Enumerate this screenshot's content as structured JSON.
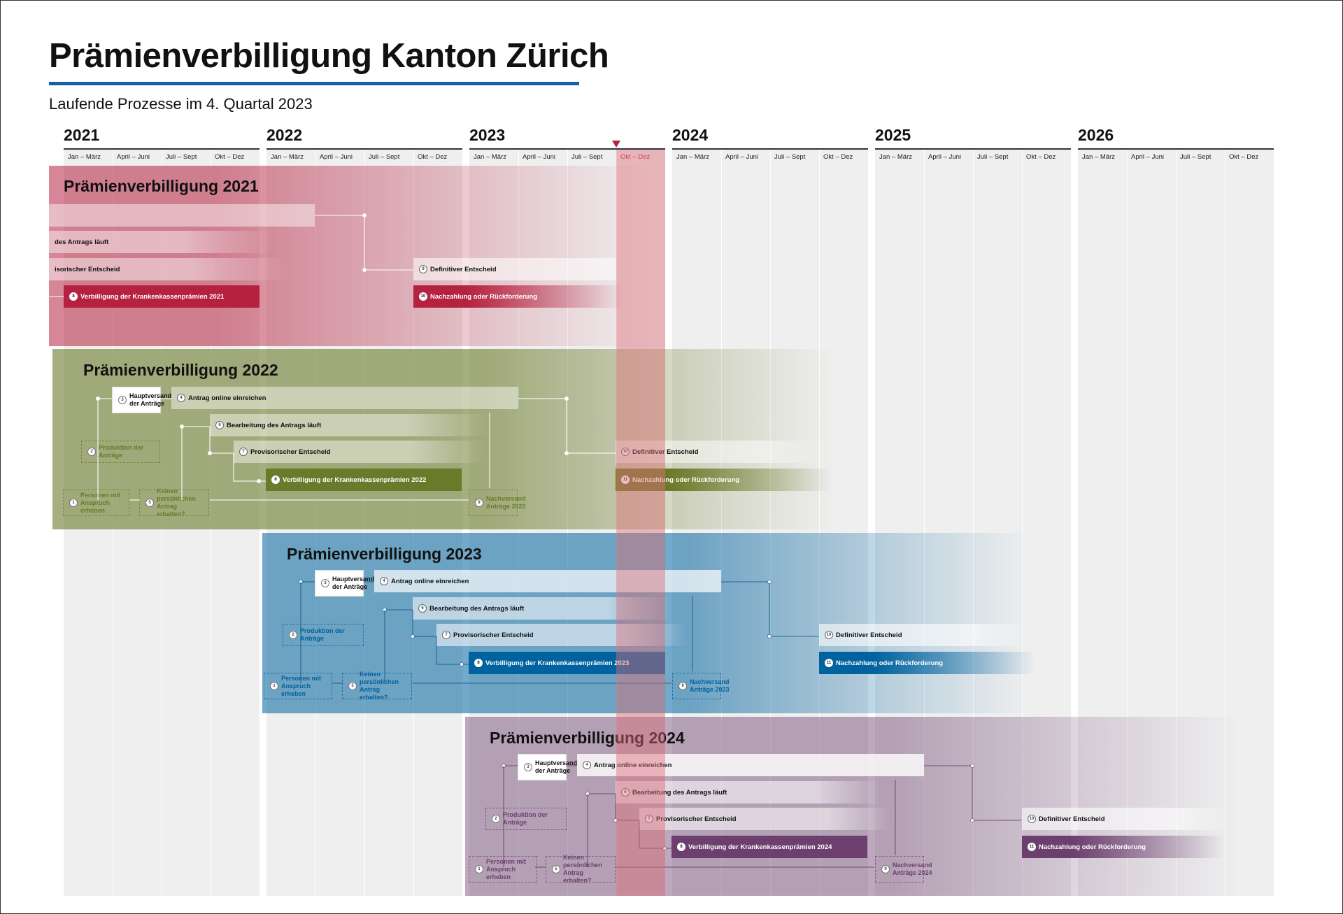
{
  "header": {
    "title": "Prämienverbilligung Kanton Zürich",
    "subtitle": "Laufende Prozesse im 4. Quartal 2023"
  },
  "timeline": {
    "years": [
      "2021",
      "2022",
      "2023",
      "2024",
      "2025",
      "2026"
    ],
    "quarters": [
      "Jan – März",
      "April – Juni",
      "Juli – Sept",
      "Okt – Dez"
    ],
    "current_quarter": {
      "year": "2023",
      "quarter": "Okt – Dez"
    }
  },
  "colors": {
    "y2021": "#b5223f",
    "y2022": "#6b7a2a",
    "y2023": "#00629e",
    "y2024": "#6c3f6e",
    "title_rule": "#1a5fa8",
    "now_marker": "#b5223f"
  },
  "bands": {
    "y2021": {
      "title": "Prämienverbilligung 2021",
      "main_bar": "",
      "processing": "des Antrags läuft",
      "provisional": "isorischer Entscheid",
      "reduction": {
        "num": "8",
        "label": "Verbilligung der Krankenkassenprämien 2021"
      },
      "definitive": {
        "num": "9",
        "label": "Definitiver Entscheid"
      },
      "settlement": {
        "num": "10",
        "label": "Nachzahlung oder Rückforderung"
      }
    },
    "y2022": {
      "title": "Prämienverbilligung 2022",
      "dispatch": {
        "num": "3",
        "label": "Hauptversand der Anträge"
      },
      "online": {
        "num": "4",
        "label": "Antrag online einreichen"
      },
      "processing": {
        "num": "6",
        "label": "Bearbeitung des Antrags läuft"
      },
      "production": {
        "num": "2",
        "label": "Produktion der Anträge"
      },
      "provisional": {
        "num": "7",
        "label": "Provisorischer Entscheid"
      },
      "reduction": {
        "num": "8",
        "label": "Verbilligung der Krankenkassenprämien 2022"
      },
      "persons": {
        "num": "1",
        "label": "Personen mit Anspruch erheben"
      },
      "no_form": {
        "num": "5",
        "label": "Keinen persönlichen Antrag erhalten?"
      },
      "followup": {
        "num": "9",
        "label": "Nachversand Anträge 2022"
      },
      "definitive": {
        "num": "10",
        "label": "Definitiver Entscheid"
      },
      "settlement": {
        "num": "11",
        "label": "Nachzahlung oder Rückforderung"
      }
    },
    "y2023": {
      "title": "Prämienverbilligung 2023",
      "dispatch": {
        "num": "3",
        "label": "Hauptversand der Anträge"
      },
      "online": {
        "num": "4",
        "label": "Antrag online einreichen"
      },
      "processing": {
        "num": "6",
        "label": "Bearbeitung des Antrags läuft"
      },
      "production": {
        "num": "2",
        "label": "Produktion der Anträge"
      },
      "provisional": {
        "num": "7",
        "label": "Provisorischer Entscheid"
      },
      "reduction": {
        "num": "8",
        "label": "Verbilligung der Krankenkassenprämien 2023"
      },
      "persons": {
        "num": "1",
        "label": "Personen mit Anspruch erheben"
      },
      "no_form": {
        "num": "5",
        "label": "Keinen persönlichen Antrag erhalten?"
      },
      "followup": {
        "num": "9",
        "label": "Nachversand Anträge 2023"
      },
      "definitive": {
        "num": "10",
        "label": "Definitiver Entscheid"
      },
      "settlement": {
        "num": "11",
        "label": "Nachzahlung oder Rückforderung"
      }
    },
    "y2024": {
      "title": "Prämienverbilligung 2024",
      "dispatch": {
        "num": "3",
        "label": "Hauptversand der Anträge"
      },
      "online": {
        "num": "4",
        "label": "Antrag online einreichen"
      },
      "processing": {
        "num": "6",
        "label": "Bearbeitung des Antrags läuft"
      },
      "production": {
        "num": "2",
        "label": "Produktion der Anträge"
      },
      "provisional": {
        "num": "7",
        "label": "Provisorischer Entscheid"
      },
      "reduction": {
        "num": "8",
        "label": "Verbilligung der Krankenkassenprämien 2024"
      },
      "persons": {
        "num": "1",
        "label": "Personen mit Anspruch erheben"
      },
      "no_form": {
        "num": "5",
        "label": "Keinen persönlichen Antrag erhalten?"
      },
      "followup": {
        "num": "9",
        "label": "Nachversand Anträge 2024"
      },
      "definitive": {
        "num": "10",
        "label": "Definitiver Entscheid"
      },
      "settlement": {
        "num": "11",
        "label": "Nachzahlung oder Rückforderung"
      }
    }
  }
}
